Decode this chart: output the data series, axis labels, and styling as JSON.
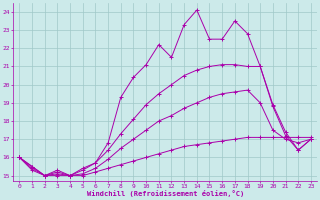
{
  "xlabel": "Windchill (Refroidissement éolien,°C)",
  "ylabel": "",
  "xlim": [
    -0.5,
    23.5
  ],
  "ylim": [
    14.7,
    24.5
  ],
  "xticks": [
    0,
    1,
    2,
    3,
    4,
    5,
    6,
    7,
    8,
    9,
    10,
    11,
    12,
    13,
    14,
    15,
    16,
    17,
    18,
    19,
    20,
    21,
    22,
    23
  ],
  "yticks": [
    15,
    16,
    17,
    18,
    19,
    20,
    21,
    22,
    23,
    24
  ],
  "bg_color": "#cceaea",
  "line_color": "#aa00aa",
  "grid_color": "#a0c8c8",
  "lines": [
    {
      "x": [
        0,
        1,
        2,
        3,
        4,
        5,
        6,
        7,
        8,
        9,
        10,
        11,
        12,
        13,
        14,
        15,
        16,
        17,
        18,
        19,
        20,
        21,
        22,
        23
      ],
      "y": [
        16,
        15.5,
        15.0,
        15.3,
        15.0,
        15.4,
        15.7,
        16.8,
        19.3,
        20.4,
        21.1,
        22.2,
        21.5,
        23.3,
        24.1,
        22.5,
        22.5,
        23.5,
        22.8,
        21.0,
        18.9,
        17.4,
        16.4,
        17.0
      ]
    },
    {
      "x": [
        0,
        1,
        2,
        3,
        4,
        5,
        6,
        7,
        8,
        9,
        10,
        11,
        12,
        13,
        14,
        15,
        16,
        17,
        18,
        19,
        20,
        21,
        22,
        23
      ],
      "y": [
        16,
        15.5,
        15.0,
        15.2,
        15.0,
        15.3,
        15.7,
        16.4,
        17.3,
        18.1,
        18.9,
        19.5,
        20.0,
        20.5,
        20.8,
        21.0,
        21.1,
        21.1,
        21.0,
        21.0,
        18.8,
        17.2,
        16.4,
        17.0
      ]
    },
    {
      "x": [
        0,
        1,
        2,
        3,
        4,
        5,
        6,
        7,
        8,
        9,
        10,
        11,
        12,
        13,
        14,
        15,
        16,
        17,
        18,
        19,
        20,
        21,
        22,
        23
      ],
      "y": [
        16,
        15.4,
        15.0,
        15.1,
        15.0,
        15.1,
        15.4,
        15.9,
        16.5,
        17.0,
        17.5,
        18.0,
        18.3,
        18.7,
        19.0,
        19.3,
        19.5,
        19.6,
        19.7,
        19.0,
        17.5,
        17.0,
        16.8,
        17.0
      ]
    },
    {
      "x": [
        0,
        1,
        2,
        3,
        4,
        5,
        6,
        7,
        8,
        9,
        10,
        11,
        12,
        13,
        14,
        15,
        16,
        17,
        18,
        19,
        20,
        21,
        22,
        23
      ],
      "y": [
        16,
        15.3,
        15.0,
        15.0,
        15.0,
        15.0,
        15.2,
        15.4,
        15.6,
        15.8,
        16.0,
        16.2,
        16.4,
        16.6,
        16.7,
        16.8,
        16.9,
        17.0,
        17.1,
        17.1,
        17.1,
        17.1,
        17.1,
        17.1
      ]
    }
  ]
}
